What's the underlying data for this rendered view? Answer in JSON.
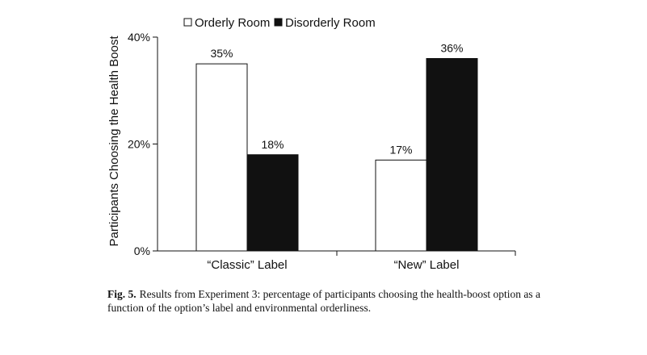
{
  "chart_data": {
    "type": "bar",
    "categories": [
      "“Classic” Label",
      "“New” Label"
    ],
    "series": [
      {
        "name": "Orderly Room",
        "values": [
          35,
          17
        ],
        "color": "#ffffff"
      },
      {
        "name": "Disorderly Room",
        "values": [
          18,
          36
        ],
        "color": "#111111"
      }
    ],
    "data_labels": [
      [
        "35%",
        "17%"
      ],
      [
        "18%",
        "36%"
      ]
    ],
    "ylabel": "Participants Choosing the Health Boost",
    "yticks": [
      "0%",
      "20%",
      "40%"
    ],
    "ylim": [
      0,
      40
    ],
    "legend_position": "top",
    "grid": false
  },
  "caption": {
    "label": "Fig. 5.",
    "text": "Results from Experiment 3: percentage of participants choosing the health-boost option as a function of the option’s label and environmental orderliness."
  }
}
